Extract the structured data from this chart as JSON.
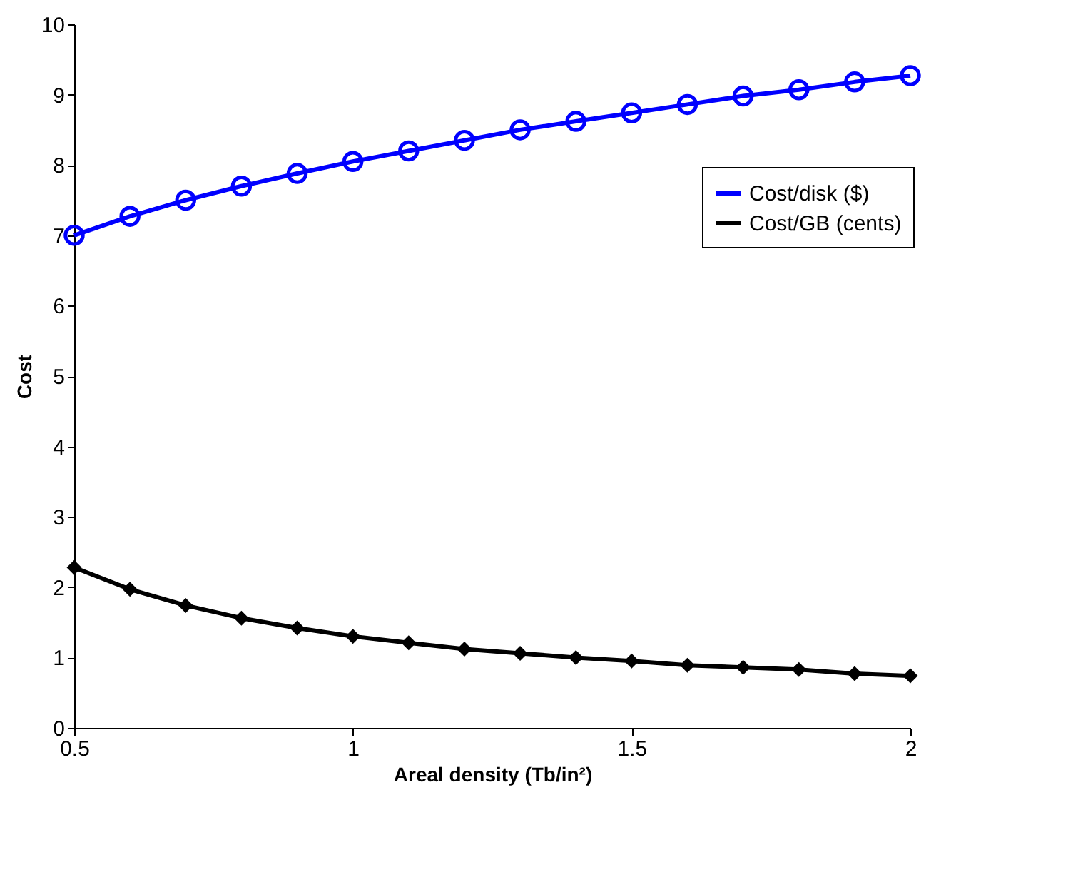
{
  "chart_data": {
    "type": "line",
    "xlabel": "Areal density (Tb/in²)",
    "ylabel": "Cost",
    "x": [
      0.5,
      0.6,
      0.7,
      0.8,
      0.9,
      1.0,
      1.1,
      1.2,
      1.3,
      1.4,
      1.5,
      1.6,
      1.7,
      1.8,
      1.9,
      2.0
    ],
    "series": [
      {
        "name": "Cost/disk ($)",
        "color": "#0000ff",
        "marker": "circle",
        "values": [
          7.0,
          7.27,
          7.5,
          7.7,
          7.88,
          8.05,
          8.2,
          8.35,
          8.5,
          8.62,
          8.74,
          8.86,
          8.98,
          9.07,
          9.18,
          9.27
        ]
      },
      {
        "name": "Cost/GB (cents)",
        "color": "#000000",
        "marker": "diamond",
        "values": [
          2.28,
          1.97,
          1.74,
          1.56,
          1.42,
          1.3,
          1.21,
          1.12,
          1.06,
          1.0,
          0.95,
          0.89,
          0.86,
          0.83,
          0.77,
          0.74
        ]
      }
    ],
    "xlim": [
      0.5,
      2
    ],
    "xticks": [
      0.5,
      1,
      1.5,
      2
    ],
    "ylim": [
      0,
      10
    ],
    "yticks": [
      0,
      1,
      2,
      3,
      4,
      5,
      6,
      7,
      8,
      9,
      10
    ],
    "grid": false,
    "legend": "top right",
    "line_style": "solid"
  }
}
